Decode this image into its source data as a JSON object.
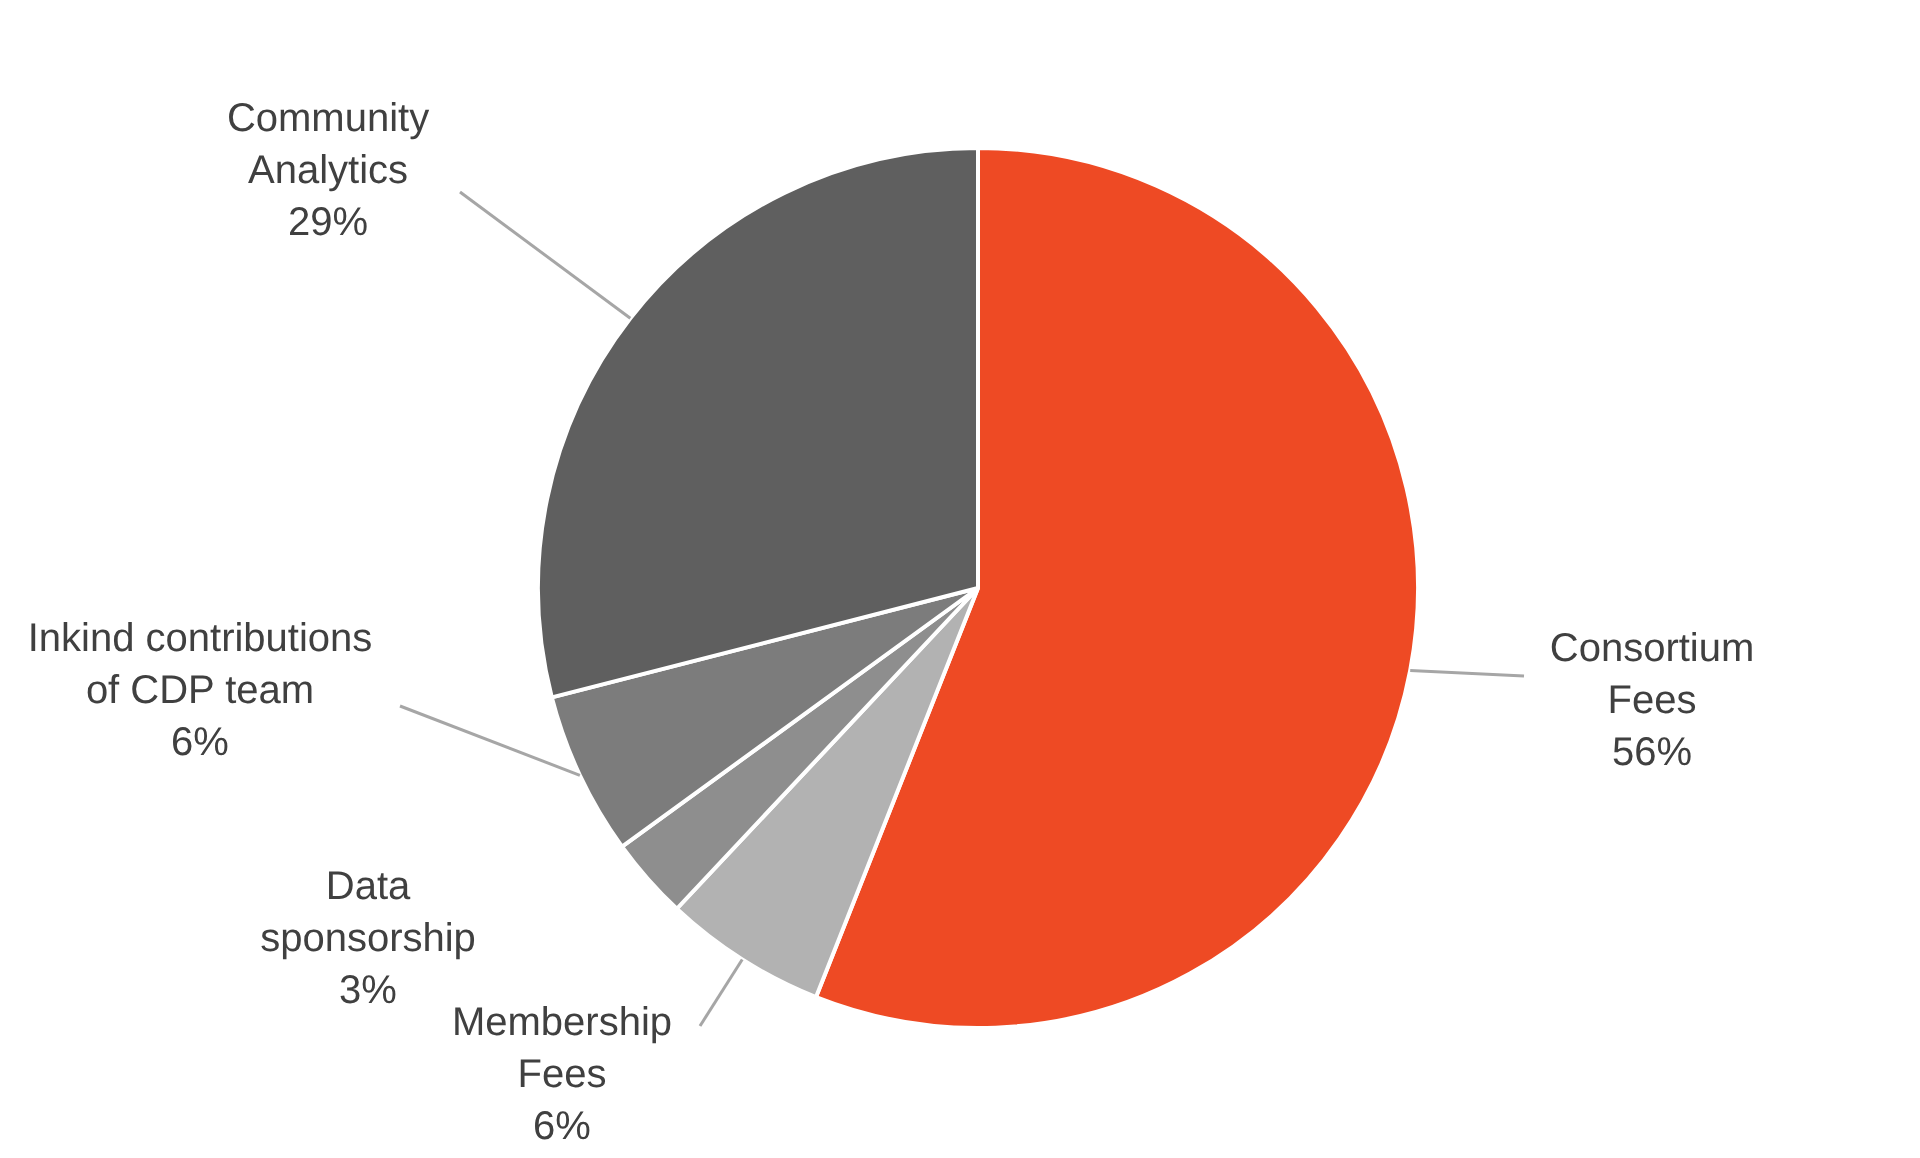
{
  "chart_data": {
    "type": "pie",
    "categories": [
      "Consortium Fees",
      "Membership Fees",
      "Data sponsorship",
      "Inkind contributions of CDP team",
      "Community Analytics"
    ],
    "values": [
      56,
      6,
      3,
      6,
      29
    ],
    "value_labels": [
      "56%",
      "6%",
      "3%",
      "6%",
      "29%"
    ],
    "colors": [
      "#ee4a24",
      "#b2b2b2",
      "#8e8e8e",
      "#7c7c7c",
      "#5f5f5f"
    ]
  }
}
